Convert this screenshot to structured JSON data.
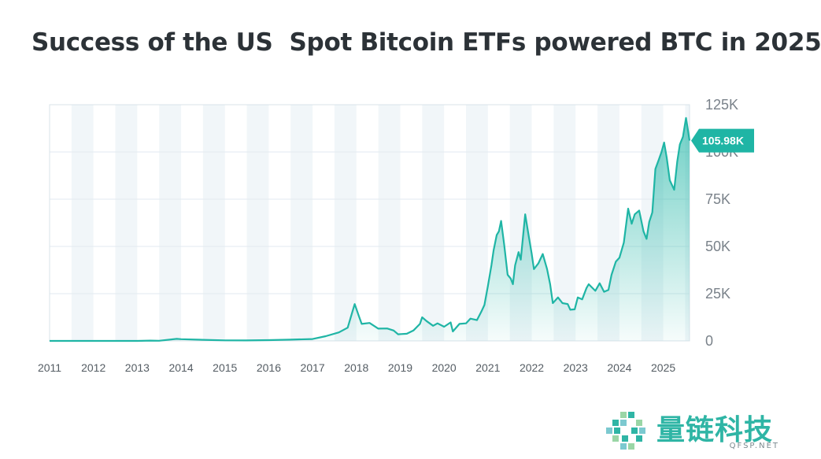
{
  "chart_data": {
    "type": "area",
    "title": "Success of the US  Spot Bitcoin ETFs powered BTC in 2025",
    "xlabel": "",
    "ylabel": "",
    "xlim": [
      2011.0,
      2025.6
    ],
    "ylim": [
      0,
      125000
    ],
    "x_tick_labels": [
      "2011",
      "2012",
      "2013",
      "2014",
      "2015",
      "2016",
      "2017",
      "2018",
      "2019",
      "2020",
      "2021",
      "2022",
      "2023",
      "2024",
      "2025"
    ],
    "y_tick_values": [
      0,
      25000,
      50000,
      75000,
      100000,
      125000
    ],
    "y_tick_labels": [
      "0",
      "25K",
      "50K",
      "75K",
      "100K",
      "125K"
    ],
    "last_value_label": "105.98K",
    "last_value": 105980,
    "series": [
      {
        "name": "BTC",
        "color": "#1fb5a5",
        "points": [
          [
            2011.0,
            5
          ],
          [
            2011.5,
            15
          ],
          [
            2012.0,
            6
          ],
          [
            2012.5,
            7
          ],
          [
            2013.0,
            13
          ],
          [
            2013.3,
            150
          ],
          [
            2013.5,
            100
          ],
          [
            2013.9,
            1100
          ],
          [
            2014.0,
            900
          ],
          [
            2014.5,
            600
          ],
          [
            2015.0,
            300
          ],
          [
            2015.5,
            250
          ],
          [
            2016.0,
            430
          ],
          [
            2016.5,
            650
          ],
          [
            2017.0,
            1000
          ],
          [
            2017.3,
            2500
          ],
          [
            2017.6,
            4500
          ],
          [
            2017.8,
            7000
          ],
          [
            2017.96,
            19500
          ],
          [
            2018.05,
            13500
          ],
          [
            2018.12,
            9000
          ],
          [
            2018.3,
            9500
          ],
          [
            2018.5,
            6500
          ],
          [
            2018.7,
            6600
          ],
          [
            2018.85,
            5500
          ],
          [
            2018.95,
            3500
          ],
          [
            2019.15,
            3800
          ],
          [
            2019.3,
            5500
          ],
          [
            2019.45,
            9000
          ],
          [
            2019.5,
            12500
          ],
          [
            2019.6,
            10500
          ],
          [
            2019.75,
            8000
          ],
          [
            2019.85,
            9300
          ],
          [
            2020.0,
            7500
          ],
          [
            2020.15,
            9800
          ],
          [
            2020.2,
            5000
          ],
          [
            2020.35,
            9000
          ],
          [
            2020.5,
            9300
          ],
          [
            2020.6,
            11800
          ],
          [
            2020.75,
            11000
          ],
          [
            2020.85,
            15500
          ],
          [
            2020.92,
            19000
          ],
          [
            2021.0,
            29000
          ],
          [
            2021.08,
            40000
          ],
          [
            2021.13,
            48000
          ],
          [
            2021.2,
            56000
          ],
          [
            2021.25,
            58000
          ],
          [
            2021.3,
            63500
          ],
          [
            2021.37,
            51000
          ],
          [
            2021.45,
            35000
          ],
          [
            2021.52,
            33000
          ],
          [
            2021.57,
            30000
          ],
          [
            2021.62,
            40000
          ],
          [
            2021.7,
            47000
          ],
          [
            2021.75,
            43000
          ],
          [
            2021.8,
            55000
          ],
          [
            2021.85,
            67000
          ],
          [
            2021.92,
            57000
          ],
          [
            2022.0,
            46000
          ],
          [
            2022.05,
            38000
          ],
          [
            2022.15,
            41000
          ],
          [
            2022.25,
            46000
          ],
          [
            2022.35,
            38000
          ],
          [
            2022.42,
            30000
          ],
          [
            2022.48,
            20000
          ],
          [
            2022.6,
            23000
          ],
          [
            2022.7,
            20000
          ],
          [
            2022.82,
            19500
          ],
          [
            2022.88,
            16500
          ],
          [
            2022.98,
            16700
          ],
          [
            2023.05,
            23000
          ],
          [
            2023.15,
            22000
          ],
          [
            2023.25,
            28000
          ],
          [
            2023.3,
            30000
          ],
          [
            2023.45,
            26500
          ],
          [
            2023.55,
            30500
          ],
          [
            2023.65,
            26000
          ],
          [
            2023.75,
            27000
          ],
          [
            2023.82,
            35000
          ],
          [
            2023.92,
            42000
          ],
          [
            2024.0,
            44000
          ],
          [
            2024.1,
            52000
          ],
          [
            2024.2,
            70000
          ],
          [
            2024.28,
            62000
          ],
          [
            2024.35,
            67000
          ],
          [
            2024.45,
            69000
          ],
          [
            2024.55,
            58000
          ],
          [
            2024.62,
            54000
          ],
          [
            2024.68,
            63000
          ],
          [
            2024.75,
            68000
          ],
          [
            2024.82,
            91000
          ],
          [
            2024.9,
            96000
          ],
          [
            2024.96,
            100000
          ],
          [
            2025.02,
            105000
          ],
          [
            2025.08,
            97000
          ],
          [
            2025.15,
            85000
          ],
          [
            2025.25,
            80000
          ],
          [
            2025.32,
            95000
          ],
          [
            2025.38,
            104000
          ],
          [
            2025.45,
            108000
          ],
          [
            2025.52,
            118000
          ],
          [
            2025.56,
            112000
          ],
          [
            2025.6,
            105980
          ]
        ]
      }
    ]
  },
  "watermark": {
    "brand": "量链科技",
    "site": "QFSP.NET",
    "color": "#2fb5a5"
  }
}
